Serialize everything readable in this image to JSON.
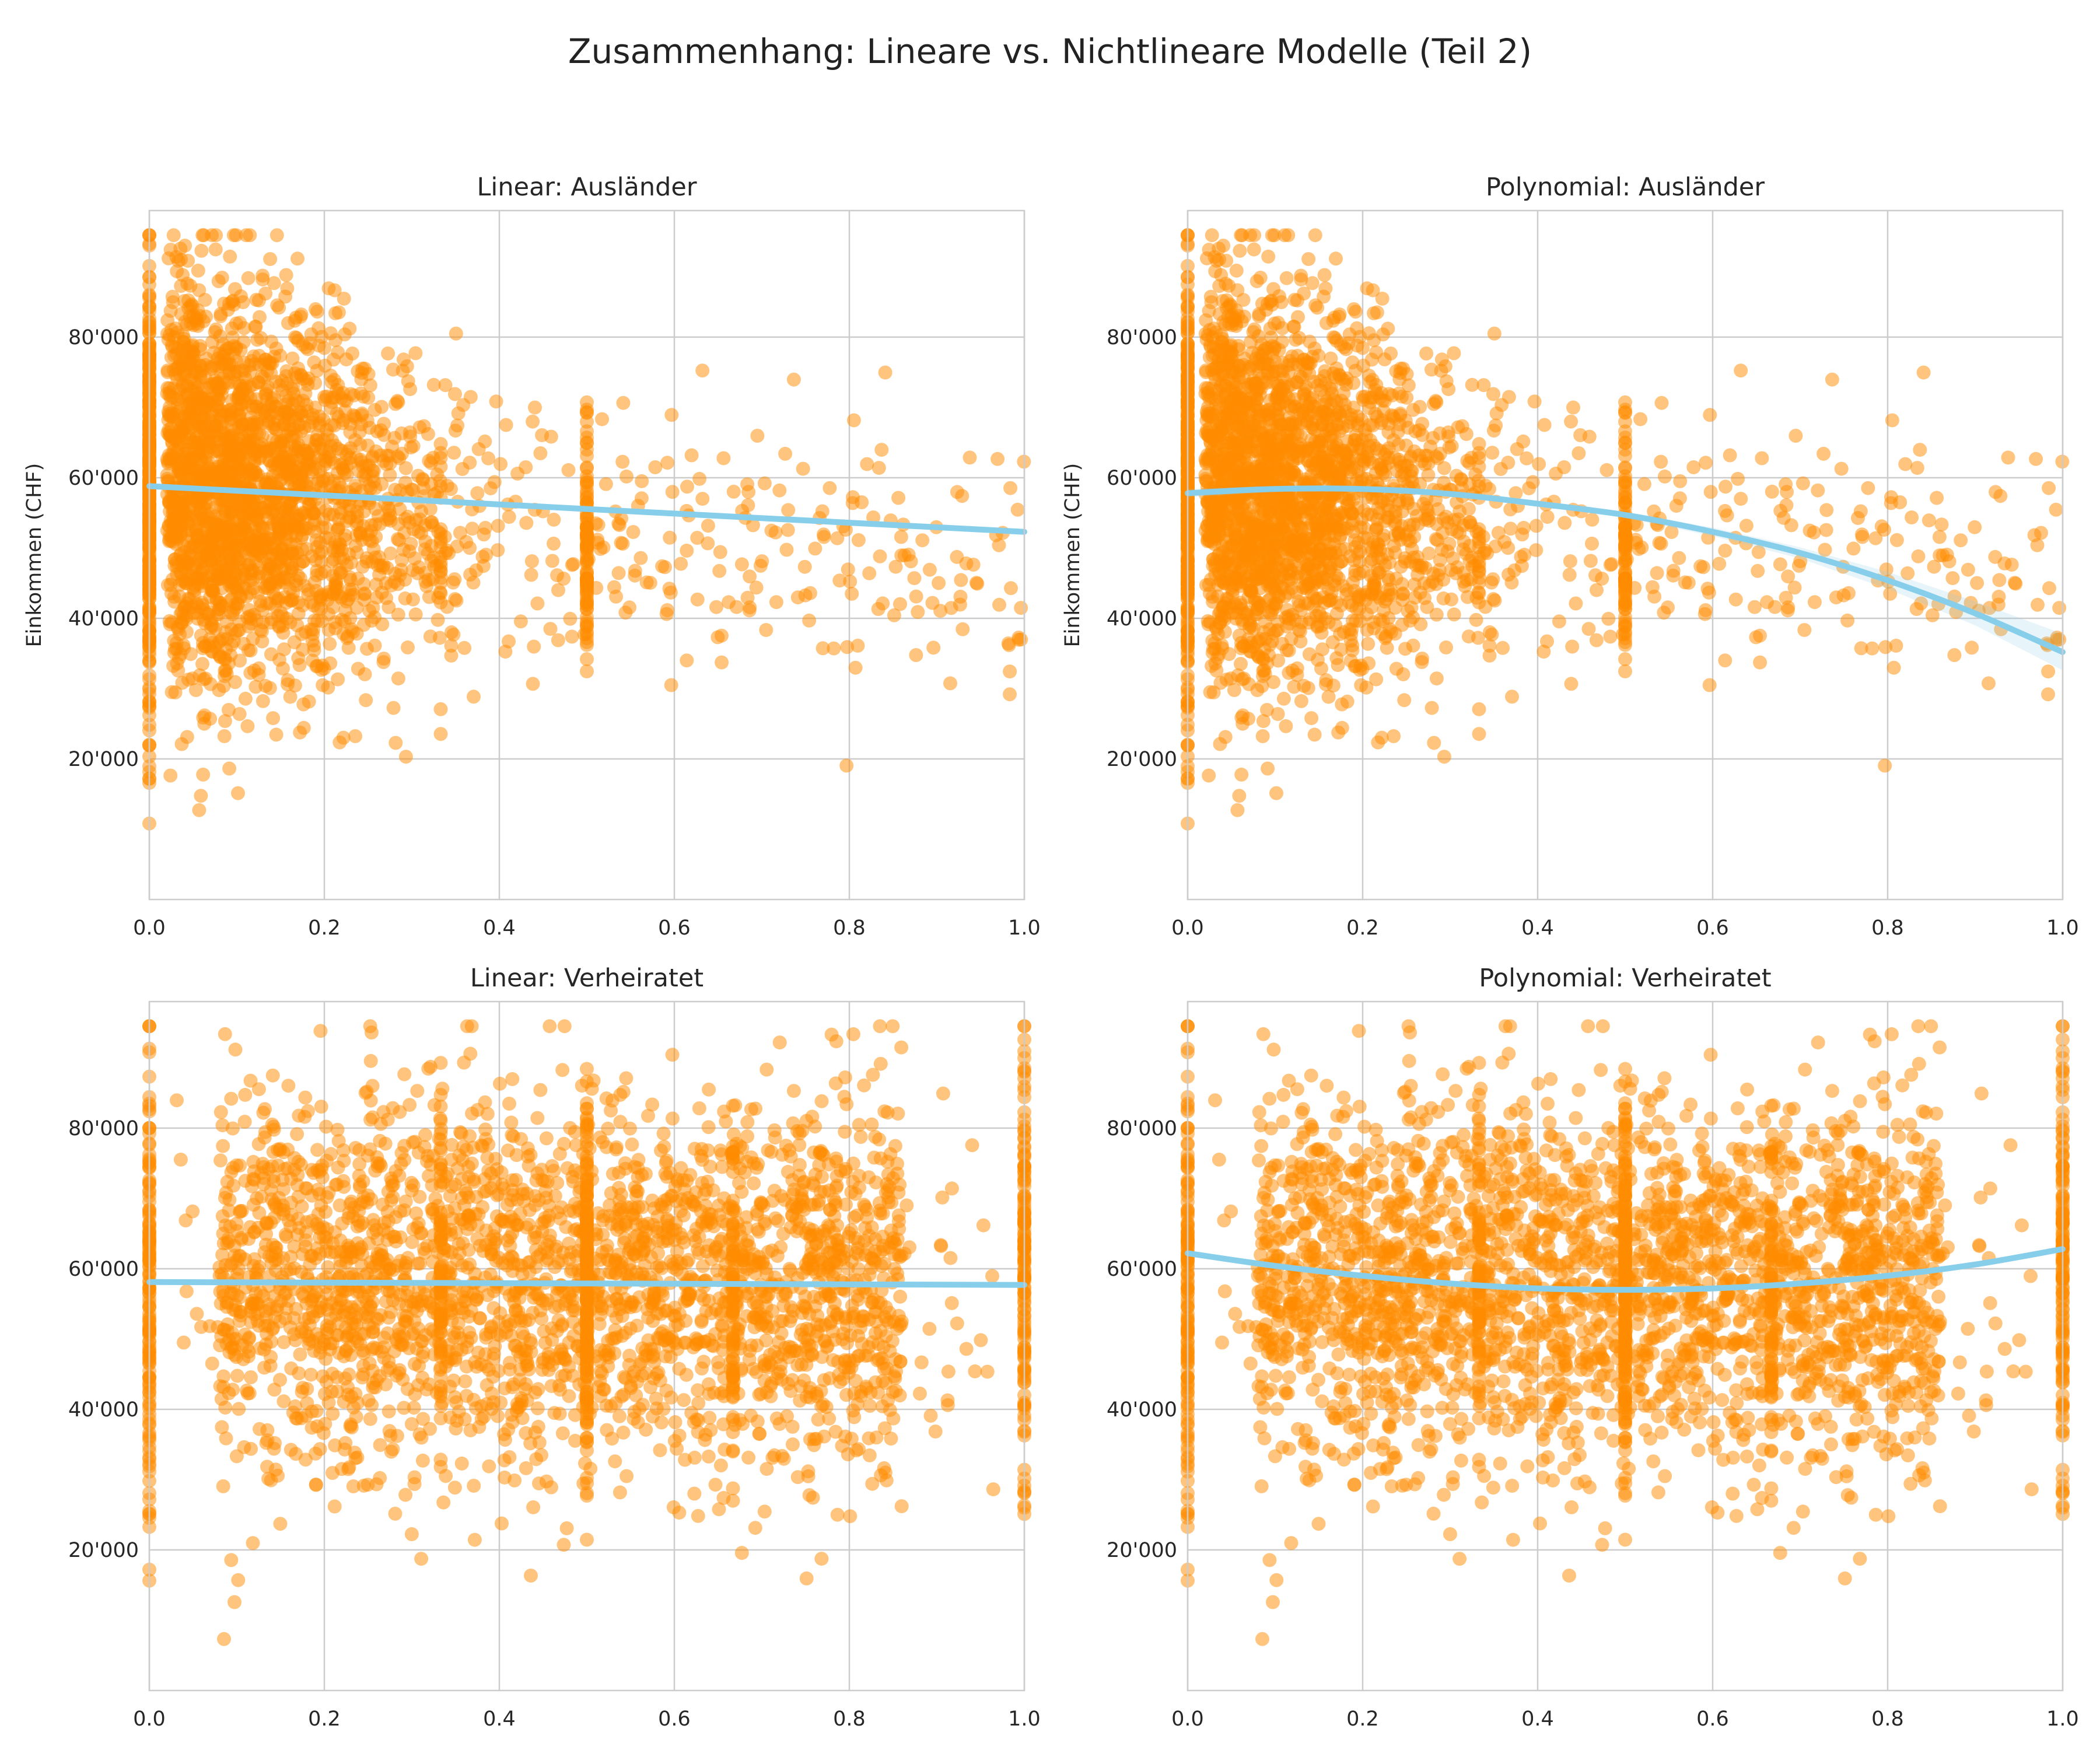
{
  "figure": {
    "title": "Zusammenhang: Lineare vs. Nichtlineare Modelle (Teil 2)"
  },
  "colors": {
    "points": "#FF8C00",
    "fit_line": "#87CEEB",
    "ci_band": "#87CEEB",
    "grid": "#cccccc"
  },
  "chart_data": [
    {
      "type": "scatter",
      "title": "Linear: Ausländer",
      "xlabel": "",
      "ylabel": "Einkommen (CHF)",
      "xlim": [
        0,
        1
      ],
      "ylim": [
        0,
        98000
      ],
      "xticks": [
        "0.0",
        "0.2",
        "0.4",
        "0.6",
        "0.8",
        "1.0"
      ],
      "yticks": [
        {
          "value": 20000,
          "label": "20'000"
        },
        {
          "value": 40000,
          "label": "40'000"
        },
        {
          "value": 60000,
          "label": "60'000"
        },
        {
          "value": 80000,
          "label": "80'000"
        }
      ],
      "grid": true,
      "points_profile": "auslaender",
      "fit": {
        "kind": "linear",
        "x": [
          0,
          0.1,
          0.2,
          0.3,
          0.4,
          0.5,
          0.6,
          0.7,
          0.8,
          0.9,
          1.0
        ],
        "y": [
          58800,
          58150,
          57500,
          56850,
          56200,
          55550,
          54900,
          54250,
          53600,
          52950,
          52300
        ]
      }
    },
    {
      "type": "scatter",
      "title": "Polynomial: Ausländer",
      "xlabel": "",
      "ylabel": "Einkommen (CHF)",
      "xlim": [
        0,
        1
      ],
      "ylim": [
        0,
        98000
      ],
      "xticks": [
        "0.0",
        "0.2",
        "0.4",
        "0.6",
        "0.8",
        "1.0"
      ],
      "yticks": [
        {
          "value": 20000,
          "label": "20'000"
        },
        {
          "value": 40000,
          "label": "40'000"
        },
        {
          "value": 60000,
          "label": "60'000"
        },
        {
          "value": 80000,
          "label": "80'000"
        }
      ],
      "grid": true,
      "points_profile": "auslaender",
      "fit": {
        "kind": "polynomial",
        "x": [
          0,
          0.1,
          0.2,
          0.3,
          0.4,
          0.5,
          0.6,
          0.7,
          0.8,
          0.9,
          1.0
        ],
        "y": [
          57800,
          58400,
          58400,
          57700,
          56300,
          54700,
          52300,
          49300,
          45400,
          40700,
          35200
        ],
        "ci_upper": [
          58400,
          58800,
          58800,
          58100,
          56700,
          55100,
          52900,
          50100,
          46600,
          42400,
          37800
        ],
        "ci_lower": [
          57200,
          58000,
          58000,
          57300,
          55900,
          54300,
          51700,
          48500,
          44200,
          39000,
          32600
        ]
      }
    },
    {
      "type": "scatter",
      "title": "Linear: Verheiratet",
      "xlabel": "",
      "ylabel": "",
      "xlim": [
        0,
        1
      ],
      "ylim": [
        0,
        98000
      ],
      "xticks": [
        "0.0",
        "0.2",
        "0.4",
        "0.6",
        "0.8",
        "1.0"
      ],
      "yticks": [
        {
          "value": 20000,
          "label": "20'000"
        },
        {
          "value": 40000,
          "label": "40'000"
        },
        {
          "value": 60000,
          "label": "60'000"
        },
        {
          "value": 80000,
          "label": "80'000"
        }
      ],
      "grid": true,
      "points_profile": "verheiratet",
      "fit": {
        "kind": "linear",
        "x": [
          0,
          0.25,
          0.5,
          0.75,
          1.0
        ],
        "y": [
          58100,
          58000,
          57900,
          57800,
          57700
        ]
      }
    },
    {
      "type": "scatter",
      "title": "Polynomial: Verheiratet",
      "xlabel": "",
      "ylabel": "",
      "xlim": [
        0,
        1
      ],
      "ylim": [
        0,
        98000
      ],
      "xticks": [
        "0.0",
        "0.2",
        "0.4",
        "0.6",
        "0.8",
        "1.0"
      ],
      "yticks": [
        {
          "value": 20000,
          "label": "20'000"
        },
        {
          "value": 40000,
          "label": "40'000"
        },
        {
          "value": 60000,
          "label": "60'000"
        },
        {
          "value": 80000,
          "label": "80'000"
        }
      ],
      "grid": true,
      "points_profile": "verheiratet",
      "fit": {
        "kind": "polynomial",
        "x": [
          0,
          0.1,
          0.2,
          0.3,
          0.4,
          0.5,
          0.6,
          0.7,
          0.8,
          0.9,
          1.0
        ],
        "y": [
          62200,
          60400,
          59000,
          57900,
          57200,
          57000,
          57200,
          57900,
          59000,
          60600,
          62800
        ]
      }
    }
  ]
}
